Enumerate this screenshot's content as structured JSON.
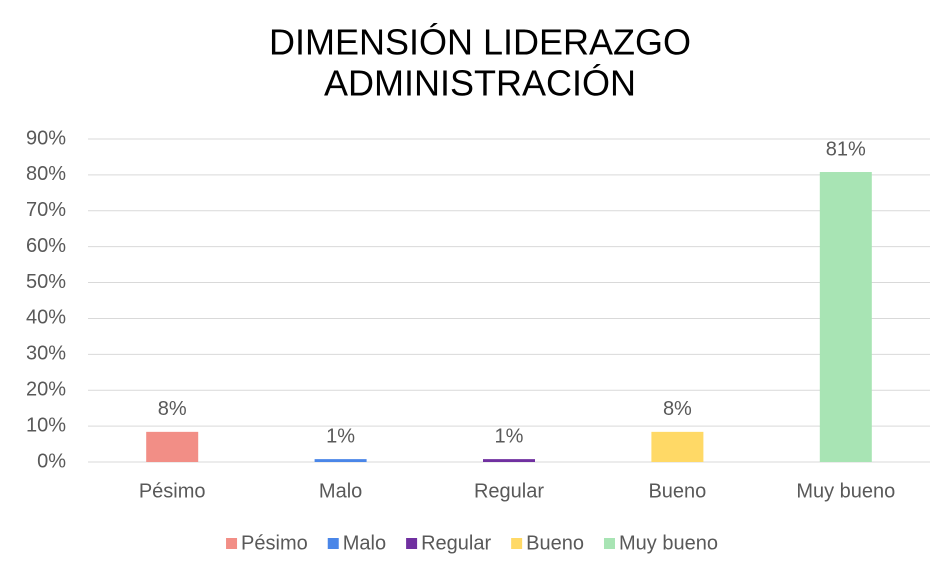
{
  "chart_data": {
    "type": "bar",
    "title": [
      "DIMENSIÓN LIDERAZGO",
      "ADMINISTRACIÓN"
    ],
    "categories": [
      "Pésimo",
      "Malo",
      "Regular",
      "Bueno",
      "Muy bueno"
    ],
    "values": [
      8.4,
      0.8,
      0.8,
      8.4,
      80.8
    ],
    "value_labels": [
      "8%",
      "1%",
      "1%",
      "8%",
      "81%"
    ],
    "colors": [
      "#f28e86",
      "#4a86e8",
      "#7030a0",
      "#ffd966",
      "#a8e4b4"
    ],
    "ylim": [
      0,
      90
    ],
    "yticks": [
      {
        "value": 0,
        "label": "0%"
      },
      {
        "value": 10,
        "label": "10%"
      },
      {
        "value": 20,
        "label": "20%"
      },
      {
        "value": 30,
        "label": "30%"
      },
      {
        "value": 40,
        "label": "40%"
      },
      {
        "value": 50,
        "label": "50%"
      },
      {
        "value": 60,
        "label": "60%"
      },
      {
        "value": 70,
        "label": "70%"
      },
      {
        "value": 80,
        "label": "80%"
      },
      {
        "value": 90,
        "label": "90%"
      }
    ],
    "grid": true,
    "legend": "bottom"
  }
}
